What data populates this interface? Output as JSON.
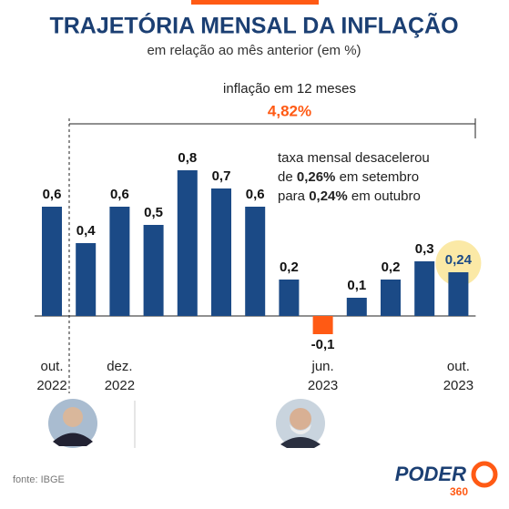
{
  "chart_data": {
    "type": "bar",
    "title": "TRAJETÓRIA MENSAL DA INFLAÇÃO",
    "subtitle": "em relação ao mês anterior (em %)",
    "categories": [
      "out. 2022",
      null,
      "dez. 2022",
      null,
      null,
      null,
      null,
      null,
      "jun. 2023",
      null,
      null,
      null,
      "out. 2023"
    ],
    "values": [
      0.6,
      0.4,
      0.6,
      0.5,
      0.8,
      0.7,
      0.6,
      0.2,
      -0.1,
      0.1,
      0.2,
      0.3,
      0.24
    ],
    "value_labels": [
      "0,6",
      "0,4",
      "0,6",
      "0,5",
      "0,8",
      "0,7",
      "0,6",
      "0,2",
      "-0,1",
      "0,1",
      "0,2",
      "0,3",
      "0,24"
    ],
    "color": "#1b4a86",
    "negative_color": "#ff5a14",
    "highlight_color": "#fbe9a6",
    "annotation_label": "inflação em 12 meses",
    "annotation_value": "4,82%",
    "note": [
      [
        "taxa mensal desacelerou"
      ],
      [
        "de ",
        "0,26%",
        " em setembro"
      ],
      [
        "para ",
        "0,24%",
        " em outubro"
      ]
    ],
    "source": "fonte: IBGE",
    "logo": [
      "PODER",
      "360"
    ]
  }
}
